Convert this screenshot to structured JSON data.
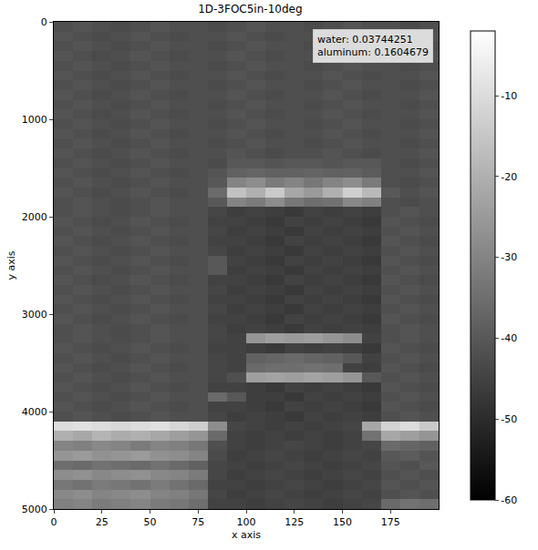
{
  "chart_data": {
    "type": "heatmap",
    "title": "1D-3FOC5in-10deg",
    "xlabel": "x axis",
    "ylabel": "y axis",
    "annotations": [
      "water: 0.03744251",
      "aluminum: 0.1604679"
    ],
    "xlim": [
      0,
      200
    ],
    "ylim": [
      5000,
      0
    ],
    "xticks": [
      0,
      25,
      50,
      75,
      100,
      125,
      150,
      175
    ],
    "yticks": [
      0,
      1000,
      2000,
      3000,
      4000,
      5000
    ],
    "zlim": [
      -60,
      -2
    ],
    "zticks": [
      -10,
      -20,
      -30,
      -40,
      -50,
      -60
    ],
    "x": [
      5,
      15,
      25,
      35,
      45,
      55,
      65,
      75,
      85,
      95,
      105,
      115,
      125,
      135,
      145,
      155,
      165,
      175,
      185,
      195
    ],
    "y": [
      50,
      150,
      250,
      350,
      450,
      550,
      650,
      750,
      850,
      950,
      1050,
      1150,
      1250,
      1350,
      1450,
      1550,
      1650,
      1750,
      1850,
      1950,
      2050,
      2150,
      2250,
      2350,
      2450,
      2550,
      2650,
      2750,
      2850,
      2950,
      3050,
      3150,
      3250,
      3350,
      3450,
      3550,
      3650,
      3750,
      3850,
      3950,
      4050,
      4150,
      4250,
      4350,
      4450,
      4550,
      4650,
      4750,
      4850,
      4950
    ],
    "z": [
      [
        -42,
        -41,
        -42,
        -43,
        -42,
        -41,
        -42,
        -42,
        -43,
        -42,
        -41,
        -42,
        -42,
        -43,
        -42,
        -41,
        -42,
        -42,
        -43,
        -42
      ],
      [
        -41,
        -42,
        -43,
        -42,
        -41,
        -42,
        -43,
        -42,
        -42,
        -41,
        -42,
        -43,
        -42,
        -42,
        -41,
        -42,
        -43,
        -42,
        -42,
        -41
      ],
      [
        -42,
        -41,
        -42,
        -43,
        -42,
        -41,
        -42,
        -42,
        -43,
        -42,
        -41,
        -42,
        -42,
        -43,
        -42,
        -41,
        -42,
        -42,
        -43,
        -42
      ],
      [
        -41,
        -42,
        -43,
        -42,
        -41,
        -42,
        -43,
        -42,
        -42,
        -41,
        -42,
        -43,
        -42,
        -42,
        -41,
        -42,
        -43,
        -42,
        -42,
        -41
      ],
      [
        -42,
        -41,
        -42,
        -43,
        -42,
        -41,
        -42,
        -42,
        -43,
        -42,
        -41,
        -42,
        -42,
        -43,
        -42,
        -41,
        -42,
        -42,
        -43,
        -42
      ],
      [
        -41,
        -42,
        -43,
        -42,
        -41,
        -42,
        -43,
        -42,
        -42,
        -41,
        -42,
        -43,
        -42,
        -42,
        -41,
        -42,
        -43,
        -42,
        -42,
        -41
      ],
      [
        -42,
        -41,
        -42,
        -43,
        -42,
        -41,
        -42,
        -42,
        -43,
        -42,
        -41,
        -42,
        -42,
        -43,
        -42,
        -41,
        -42,
        -42,
        -43,
        -42
      ],
      [
        -41,
        -42,
        -43,
        -42,
        -41,
        -42,
        -43,
        -42,
        -42,
        -41,
        -42,
        -43,
        -42,
        -42,
        -41,
        -42,
        -43,
        -42,
        -42,
        -41
      ],
      [
        -42,
        -41,
        -42,
        -43,
        -42,
        -41,
        -42,
        -42,
        -43,
        -42,
        -41,
        -42,
        -42,
        -43,
        -42,
        -41,
        -42,
        -42,
        -43,
        -42
      ],
      [
        -41,
        -42,
        -43,
        -42,
        -41,
        -42,
        -43,
        -42,
        -42,
        -41,
        -42,
        -43,
        -42,
        -42,
        -41,
        -42,
        -43,
        -42,
        -42,
        -41
      ],
      [
        -42,
        -41,
        -42,
        -43,
        -42,
        -41,
        -42,
        -42,
        -43,
        -42,
        -41,
        -42,
        -42,
        -43,
        -42,
        -41,
        -42,
        -42,
        -43,
        -42
      ],
      [
        -41,
        -42,
        -43,
        -42,
        -41,
        -42,
        -43,
        -42,
        -42,
        -41,
        -42,
        -43,
        -42,
        -42,
        -41,
        -42,
        -43,
        -42,
        -42,
        -41
      ],
      [
        -42,
        -41,
        -42,
        -43,
        -42,
        -41,
        -42,
        -42,
        -43,
        -42,
        -41,
        -42,
        -42,
        -43,
        -42,
        -41,
        -42,
        -42,
        -43,
        -42
      ],
      [
        -41,
        -42,
        -43,
        -42,
        -41,
        -42,
        -43,
        -42,
        -42,
        -41,
        -42,
        -43,
        -42,
        -42,
        -41,
        -42,
        -43,
        -42,
        -42,
        -41
      ],
      [
        -42,
        -41,
        -42,
        -43,
        -42,
        -41,
        -42,
        -42,
        -43,
        -40,
        -40,
        -41,
        -40,
        -40,
        -41,
        -40,
        -40,
        -42,
        -43,
        -42
      ],
      [
        -41,
        -42,
        -43,
        -42,
        -41,
        -42,
        -43,
        -42,
        -41,
        -38,
        -37,
        -38,
        -38,
        -37,
        -38,
        -38,
        -39,
        -42,
        -42,
        -41
      ],
      [
        -42,
        -41,
        -42,
        -43,
        -42,
        -41,
        -42,
        -42,
        -40,
        -30,
        -28,
        -32,
        -30,
        -33,
        -30,
        -28,
        -32,
        -42,
        -43,
        -42
      ],
      [
        -41,
        -42,
        -43,
        -42,
        -41,
        -42,
        -43,
        -42,
        -36,
        -16,
        -20,
        -14,
        -22,
        -25,
        -20,
        -13,
        -18,
        -40,
        -42,
        -41
      ],
      [
        -42,
        -41,
        -42,
        -43,
        -42,
        -41,
        -42,
        -42,
        -40,
        -30,
        -32,
        -28,
        -33,
        -35,
        -34,
        -29,
        -31,
        -42,
        -43,
        -42
      ],
      [
        -42,
        -41,
        -42,
        -43,
        -42,
        -41,
        -42,
        -42,
        -44,
        -46,
        -45,
        -46,
        -47,
        -45,
        -46,
        -45,
        -46,
        -42,
        -41,
        -42
      ],
      [
        -41,
        -42,
        -43,
        -42,
        -41,
        -42,
        -43,
        -42,
        -45,
        -45,
        -46,
        -47,
        -45,
        -46,
        -45,
        -46,
        -47,
        -41,
        -42,
        -43
      ],
      [
        -42,
        -41,
        -42,
        -43,
        -42,
        -41,
        -42,
        -42,
        -44,
        -46,
        -45,
        -46,
        -47,
        -45,
        -46,
        -45,
        -46,
        -42,
        -41,
        -42
      ],
      [
        -41,
        -42,
        -43,
        -42,
        -41,
        -42,
        -43,
        -42,
        -45,
        -45,
        -46,
        -47,
        -45,
        -46,
        -45,
        -46,
        -47,
        -41,
        -42,
        -43
      ],
      [
        -42,
        -41,
        -42,
        -43,
        -42,
        -41,
        -42,
        -42,
        -44,
        -46,
        -45,
        -46,
        -47,
        -45,
        -46,
        -45,
        -46,
        -42,
        -41,
        -42
      ],
      [
        -41,
        -42,
        -43,
        -42,
        -41,
        -42,
        -43,
        -42,
        -40,
        -45,
        -46,
        -47,
        -45,
        -46,
        -45,
        -46,
        -47,
        -41,
        -42,
        -43
      ],
      [
        -42,
        -41,
        -42,
        -43,
        -42,
        -41,
        -42,
        -42,
        -40,
        -46,
        -45,
        -46,
        -47,
        -45,
        -46,
        -45,
        -46,
        -42,
        -41,
        -42
      ],
      [
        -41,
        -42,
        -43,
        -42,
        -41,
        -42,
        -43,
        -42,
        -45,
        -45,
        -46,
        -47,
        -45,
        -46,
        -45,
        -46,
        -47,
        -41,
        -42,
        -43
      ],
      [
        -42,
        -41,
        -42,
        -43,
        -42,
        -41,
        -42,
        -42,
        -44,
        -46,
        -45,
        -46,
        -47,
        -45,
        -46,
        -45,
        -46,
        -42,
        -41,
        -42
      ],
      [
        -41,
        -42,
        -43,
        -42,
        -41,
        -42,
        -43,
        -42,
        -45,
        -45,
        -46,
        -47,
        -45,
        -46,
        -45,
        -46,
        -47,
        -41,
        -42,
        -43
      ],
      [
        -42,
        -41,
        -42,
        -43,
        -42,
        -41,
        -42,
        -42,
        -44,
        -46,
        -45,
        -46,
        -47,
        -45,
        -46,
        -45,
        -46,
        -42,
        -41,
        -42
      ],
      [
        -41,
        -42,
        -43,
        -42,
        -41,
        -42,
        -43,
        -42,
        -45,
        -45,
        -46,
        -47,
        -45,
        -46,
        -45,
        -46,
        -47,
        -41,
        -42,
        -43
      ],
      [
        -42,
        -41,
        -42,
        -43,
        -42,
        -41,
        -42,
        -42,
        -44,
        -46,
        -45,
        -46,
        -47,
        -45,
        -46,
        -45,
        -46,
        -42,
        -41,
        -42
      ],
      [
        -42,
        -41,
        -42,
        -43,
        -42,
        -41,
        -42,
        -42,
        -44,
        -45,
        -26,
        -24,
        -25,
        -24,
        -26,
        -28,
        -45,
        -42,
        -41,
        -42
      ],
      [
        -41,
        -42,
        -43,
        -42,
        -41,
        -42,
        -43,
        -42,
        -45,
        -45,
        -46,
        -47,
        -45,
        -46,
        -45,
        -46,
        -47,
        -41,
        -42,
        -43
      ],
      [
        -42,
        -41,
        -42,
        -43,
        -42,
        -41,
        -42,
        -42,
        -44,
        -45,
        -38,
        -37,
        -36,
        -37,
        -38,
        -40,
        -45,
        -42,
        -41,
        -42
      ],
      [
        -41,
        -42,
        -43,
        -42,
        -41,
        -42,
        -43,
        -42,
        -44,
        -45,
        -36,
        -35,
        -35,
        -34,
        -35,
        -45,
        -46,
        -41,
        -42,
        -43
      ],
      [
        -42,
        -41,
        -42,
        -43,
        -42,
        -41,
        -42,
        -42,
        -44,
        -42,
        -24,
        -23,
        -24,
        -23,
        -24,
        -26,
        -40,
        -42,
        -41,
        -42
      ],
      [
        -41,
        -42,
        -43,
        -42,
        -41,
        -42,
        -43,
        -42,
        -45,
        -45,
        -46,
        -47,
        -45,
        -46,
        -45,
        -46,
        -47,
        -41,
        -42,
        -43
      ],
      [
        -42,
        -41,
        -42,
        -43,
        -42,
        -41,
        -42,
        -42,
        -36,
        -40,
        -46,
        -46,
        -47,
        -45,
        -46,
        -45,
        -46,
        -42,
        -41,
        -42
      ],
      [
        -41,
        -42,
        -43,
        -42,
        -41,
        -42,
        -43,
        -42,
        -45,
        -45,
        -46,
        -47,
        -45,
        -46,
        -45,
        -46,
        -47,
        -41,
        -42,
        -43
      ],
      [
        -42,
        -41,
        -42,
        -43,
        -42,
        -41,
        -42,
        -42,
        -44,
        -46,
        -45,
        -46,
        -47,
        -45,
        -46,
        -45,
        -46,
        -42,
        -41,
        -42
      ],
      [
        -10,
        -9,
        -10,
        -11,
        -10,
        -9,
        -11,
        -13,
        -28,
        -44,
        -45,
        -46,
        -45,
        -46,
        -45,
        -44,
        -22,
        -12,
        -10,
        -14
      ],
      [
        -20,
        -22,
        -19,
        -21,
        -20,
        -22,
        -24,
        -26,
        -36,
        -45,
        -46,
        -45,
        -46,
        -45,
        -46,
        -45,
        -34,
        -22,
        -24,
        -26
      ],
      [
        -30,
        -31,
        -29,
        -30,
        -32,
        -30,
        -31,
        -33,
        -42,
        -45,
        -46,
        -45,
        -44,
        -45,
        -46,
        -45,
        -44,
        -36,
        -37,
        -38
      ],
      [
        -26,
        -25,
        -27,
        -26,
        -25,
        -27,
        -28,
        -30,
        -43,
        -46,
        -45,
        -44,
        -45,
        -46,
        -45,
        -44,
        -45,
        -40,
        -39,
        -41
      ],
      [
        -35,
        -36,
        -34,
        -35,
        -36,
        -34,
        -36,
        -38,
        -44,
        -45,
        -46,
        -45,
        -44,
        -45,
        -46,
        -45,
        -44,
        -41,
        -42,
        -40
      ],
      [
        -28,
        -27,
        -29,
        -28,
        -27,
        -29,
        -30,
        -32,
        -44,
        -46,
        -45,
        -44,
        -45,
        -46,
        -45,
        -44,
        -45,
        -42,
        -41,
        -42
      ],
      [
        -33,
        -34,
        -32,
        -33,
        -34,
        -32,
        -34,
        -36,
        -45,
        -45,
        -46,
        -45,
        -44,
        -45,
        -46,
        -45,
        -44,
        -41,
        -42,
        -41
      ],
      [
        -29,
        -28,
        -30,
        -29,
        -28,
        -30,
        -31,
        -33,
        -44,
        -46,
        -45,
        -44,
        -45,
        -46,
        -45,
        -44,
        -45,
        -42,
        -41,
        -42
      ],
      [
        -31,
        -30,
        -32,
        -31,
        -30,
        -32,
        -33,
        -35,
        -45,
        -45,
        -46,
        -45,
        -44,
        -45,
        -46,
        -45,
        -44,
        -36,
        -34,
        -35
      ]
    ]
  }
}
